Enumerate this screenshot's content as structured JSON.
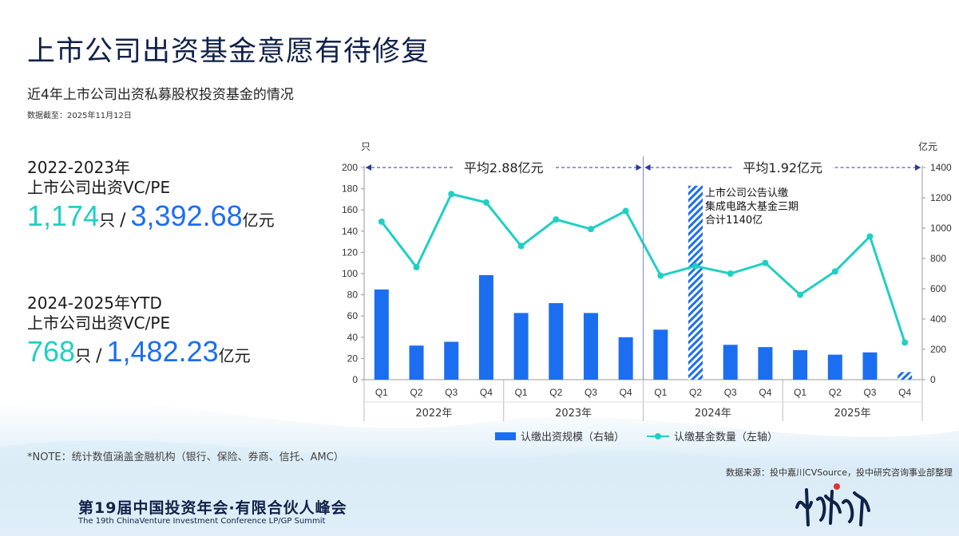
{
  "title": "上市公司出资基金意愿有待修复",
  "subtitle": "近4年上市公司出资私募股权投资基金的情况",
  "data_date": {
    "label": "数据截至：",
    "value": "2025年11月12日"
  },
  "stats": [
    {
      "period": "2022-2023年",
      "desc": "上市公司出资VC/PE",
      "count": "1,174",
      "count_unit": "只",
      "slash": "/",
      "amount": "3,392.68",
      "amount_unit": "亿元"
    },
    {
      "period": "2024-2025年YTD",
      "desc": "上市公司出资VC/PE",
      "count": "768",
      "count_unit": "只",
      "slash": "/",
      "amount": "1,482.23",
      "amount_unit": "亿元"
    }
  ],
  "chart_data": {
    "type": "bar",
    "quarters": [
      "Q1",
      "Q2",
      "Q3",
      "Q4",
      "Q1",
      "Q2",
      "Q3",
      "Q4",
      "Q1",
      "Q2",
      "Q3",
      "Q4",
      "Q1",
      "Q2",
      "Q3",
      "Q4"
    ],
    "years": [
      "2022年",
      "2023年",
      "2024年",
      "2025年"
    ],
    "left_axis": {
      "unit": "只",
      "min": 0,
      "max": 200,
      "ticks": [
        "0",
        "20",
        "40",
        "60",
        "80",
        "100",
        "120",
        "140",
        "160",
        "180",
        "200"
      ]
    },
    "right_axis": {
      "unit": "亿元",
      "min": 0,
      "max": 1400,
      "ticks": [
        "0",
        "200",
        "400",
        "600",
        "800",
        "1000",
        "1200",
        "1400"
      ]
    },
    "series": [
      {
        "name": "认缴出资规模（右轴）",
        "type": "bar",
        "axis": "right",
        "color": "#1c6ef0",
        "values": [
          595,
          225,
          250,
          690,
          440,
          505,
          440,
          280,
          330,
          1280,
          230,
          215,
          195,
          165,
          180,
          50
        ],
        "hatched_index": [
          9,
          15
        ]
      },
      {
        "name": "认缴基金数量（左轴）",
        "type": "line",
        "axis": "left",
        "color": "#1fcfc4",
        "values": [
          149,
          106,
          175,
          167,
          126,
          151,
          142,
          159,
          98,
          107,
          100,
          110,
          80,
          102,
          135,
          35
        ]
      }
    ],
    "averages": [
      {
        "label": "平均2.88亿元",
        "from_index": 0,
        "to_index": 7
      },
      {
        "label": "平均1.92亿元",
        "from_index": 8,
        "to_index": 15
      }
    ],
    "annotation": {
      "lines": [
        "上市公司公告认缴",
        "集成电路大基金三期",
        "合计1140亿"
      ],
      "index": 9
    }
  },
  "legend": {
    "bar": "认缴出资规模（右轴）",
    "line": "认缴基金数量（左轴）"
  },
  "note": "*NOTE：统计数值涵盖金融机构（银行、保险、券商、信托、AMC）",
  "source": "数据来源：投中嘉川CVSource，投中研究咨询事业部整理",
  "footer": {
    "cn": "第19届中国投资年会·有限合伙人峰会",
    "en": "The 19th ChinaVenture Investment Conference LP/GP Summit"
  },
  "logo_text": "中流击水"
}
